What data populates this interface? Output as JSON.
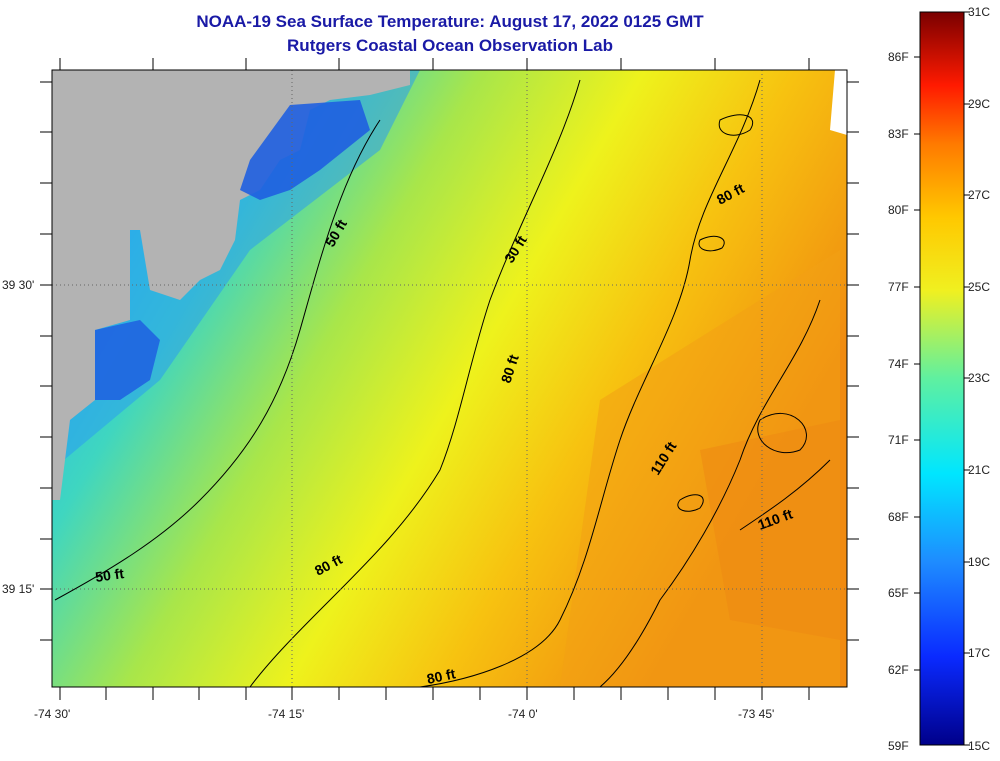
{
  "title": {
    "line1": "NOAA-19 Sea Surface Temperature:  August 17, 2022 0125 GMT",
    "line2": "Rutgers Coastal Ocean Observation Lab"
  },
  "axes": {
    "lat_labels": [
      "39 30'",
      "39 15'"
    ],
    "lon_labels": [
      "-74 30'",
      "-74 15'",
      "-74 0'",
      "-73 45'"
    ]
  },
  "contour_labels": [
    "50 ft",
    "30 ft",
    "80 ft",
    "80 ft",
    "110 ft",
    "110 ft",
    "80 ft",
    "50 ft",
    "80 ft"
  ],
  "colorbar": {
    "fahrenheit": [
      "86F",
      "83F",
      "80F",
      "77F",
      "74F",
      "71F",
      "68F",
      "65F",
      "62F",
      "59F"
    ],
    "celsius": [
      "31C",
      "29C",
      "27C",
      "25C",
      "23C",
      "21C",
      "19C",
      "17C",
      "15C"
    ],
    "min_c": 15,
    "max_c": 31
  },
  "colors": {
    "title": "#1a1aa6",
    "land": "#b3b3b3",
    "contour": "#000000"
  }
}
